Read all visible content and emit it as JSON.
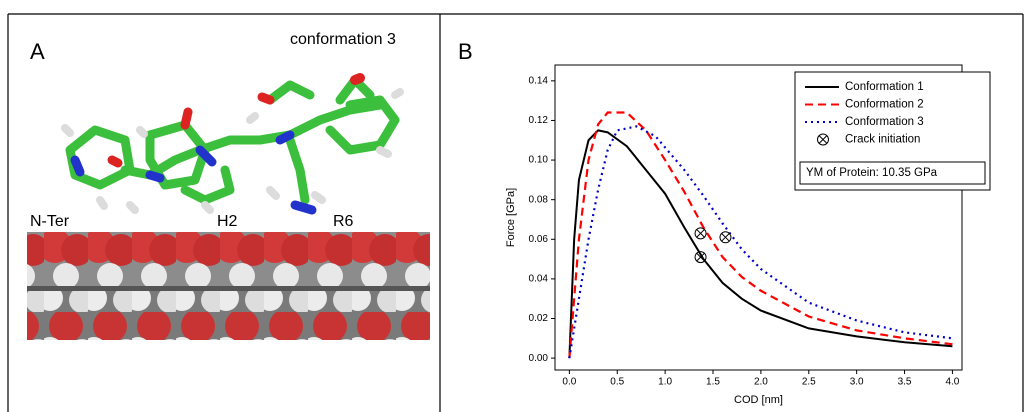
{
  "panel_a": {
    "letter": "A",
    "caption": "conformation 3",
    "labels": [
      "N-Ter",
      "H2",
      "R6"
    ]
  },
  "panel_b_letter": "B",
  "chart_data": {
    "type": "line",
    "x_label": "COD [nm]",
    "y_label": "Force [GPa]",
    "annotation": "YM of Protein: 10.35 GPa",
    "xlim": [
      -0.15,
      4.1
    ],
    "ylim": [
      -0.006,
      0.148
    ],
    "xticks": [
      {
        "value": 0,
        "label": "0.0"
      },
      0.5,
      {
        "value": 1,
        "label": "1.0"
      },
      1.5,
      {
        "value": 2,
        "label": "2.0"
      },
      2.5,
      {
        "value": 3,
        "label": "3.0"
      },
      3.5,
      {
        "value": 4,
        "label": "4.0"
      }
    ],
    "yticks": [
      {
        "value": 0,
        "label": "0.00"
      },
      0.02,
      0.04,
      0.06,
      0.08,
      {
        "value": 0.1,
        "label": "0.10"
      },
      0.12,
      0.14
    ],
    "legend": "upper right",
    "series": [
      {
        "name": "Conformation 1",
        "color": "#000000",
        "dash": "solid",
        "x": [
          0,
          0.05,
          0.1,
          0.2,
          0.3,
          0.4,
          0.6,
          0.8,
          1.0,
          1.2,
          1.4,
          1.6,
          1.8,
          2.0,
          2.5,
          3.0,
          3.5,
          4.0
        ],
        "values": [
          0,
          0.06,
          0.09,
          0.11,
          0.115,
          0.114,
          0.107,
          0.095,
          0.083,
          0.066,
          0.05,
          0.038,
          0.03,
          0.024,
          0.015,
          0.011,
          0.008,
          0.006
        ]
      },
      {
        "name": "Conformation 2",
        "color": "#ff0000",
        "dash": "dashed",
        "x": [
          0,
          0.1,
          0.2,
          0.3,
          0.4,
          0.6,
          0.8,
          1.0,
          1.2,
          1.4,
          1.6,
          1.8,
          2.0,
          2.5,
          3.0,
          3.5,
          4.0
        ],
        "values": [
          0,
          0.06,
          0.1,
          0.118,
          0.124,
          0.124,
          0.115,
          0.1,
          0.084,
          0.066,
          0.051,
          0.041,
          0.034,
          0.021,
          0.014,
          0.01,
          0.007
        ]
      },
      {
        "name": "Conformation 3",
        "color": "#0000cc",
        "dash": "dotted",
        "x": [
          0,
          0.1,
          0.2,
          0.3,
          0.4,
          0.5,
          0.7,
          0.9,
          1.2,
          1.4,
          1.6,
          1.8,
          2.0,
          2.5,
          3.0,
          3.5,
          4.0
        ],
        "values": [
          0,
          0.03,
          0.06,
          0.085,
          0.105,
          0.115,
          0.117,
          0.112,
          0.095,
          0.082,
          0.068,
          0.055,
          0.045,
          0.028,
          0.019,
          0.013,
          0.01
        ]
      },
      {
        "name": "Crack initiation",
        "color": "#000000",
        "marker": "circled-x",
        "x": [
          1.37,
          1.37,
          1.63
        ],
        "values": [
          0.051,
          0.063,
          0.061
        ]
      }
    ]
  }
}
